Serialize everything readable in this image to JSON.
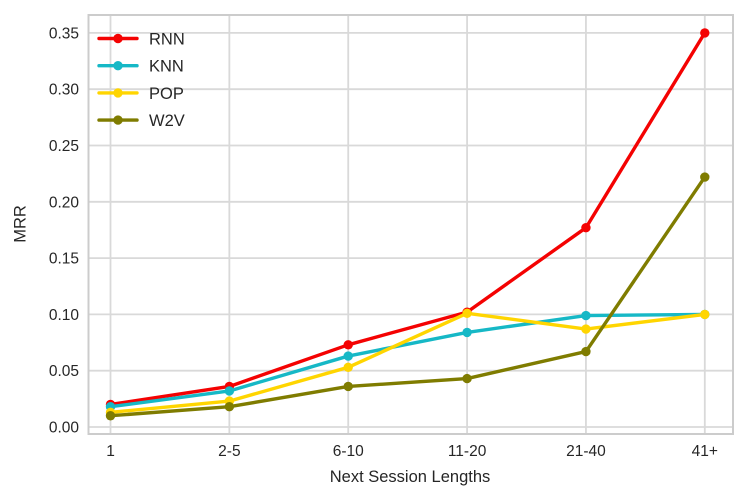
{
  "chart_data": {
    "type": "line",
    "title": "",
    "xlabel": "Next Session Lengths",
    "ylabel": "MRR",
    "categories": [
      "1",
      "2-5",
      "6-10",
      "11-20",
      "21-40",
      "41+"
    ],
    "series": [
      {
        "name": "RNN",
        "color": "#f40202",
        "values": [
          0.02,
          0.036,
          0.073,
          0.102,
          0.177,
          0.35
        ]
      },
      {
        "name": "KNN",
        "color": "#16b8c6",
        "values": [
          0.018,
          0.032,
          0.063,
          0.084,
          0.099,
          0.1
        ]
      },
      {
        "name": "POP",
        "color": "#ffd500",
        "values": [
          0.013,
          0.023,
          0.053,
          0.101,
          0.087,
          0.1
        ]
      },
      {
        "name": "W2V",
        "color": "#7f7c00",
        "values": [
          0.01,
          0.018,
          0.036,
          0.043,
          0.067,
          0.222
        ]
      }
    ],
    "yticks": [
      "0.00",
      "0.05",
      "0.10",
      "0.15",
      "0.20",
      "0.25",
      "0.30",
      "0.35"
    ],
    "ytick_step": 0.05,
    "ylim": [
      -0.006,
      0.366
    ],
    "grid": true,
    "legend_position": "upper-left",
    "marker": "circle"
  },
  "colors": {
    "grid": "#d9d9d9",
    "spine": "#cccccc",
    "text": "#262626",
    "background": "#ffffff"
  }
}
